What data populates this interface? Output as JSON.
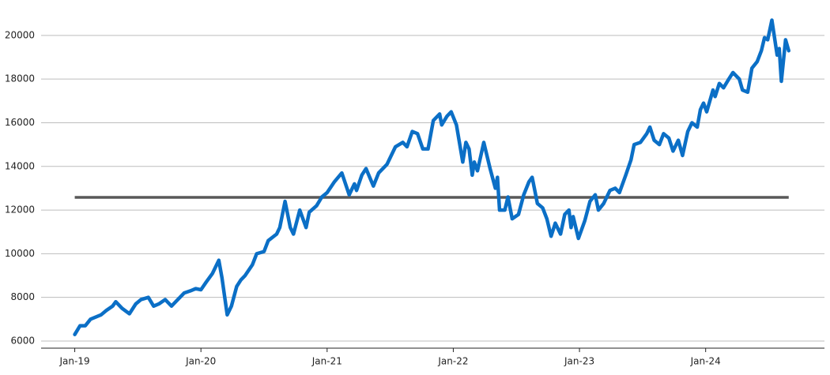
{
  "chart_data": {
    "type": "line",
    "x": [
      0,
      0.5,
      1,
      1.5,
      2,
      2.5,
      3,
      3.3,
      3.6,
      3.9,
      4.5,
      5.2,
      5.8,
      6.3,
      7,
      7.5,
      8,
      8.6,
      9.2,
      9.8,
      10.4,
      11,
      11.5,
      12,
      12.5,
      13.1,
      13.7,
      14,
      14.5,
      14.9,
      15.4,
      15.8,
      16.2,
      16.9,
      17.3,
      18,
      18.4,
      19.2,
      19.5,
      20,
      20.5,
      20.8,
      21.4,
      22,
      22.3,
      23,
      23.5,
      24,
      24.7,
      25.4,
      26.1,
      26.6,
      26.8,
      27.3,
      27.7,
      28.4,
      28.9,
      29.7,
      30.5,
      31.2,
      31.6,
      32.1,
      32.6,
      33.1,
      33.6,
      34.1,
      34.7,
      34.9,
      35.4,
      35.8,
      36.3,
      36.9,
      37.2,
      37.5,
      37.8,
      38,
      38.3,
      38.9,
      39.5,
      40,
      40.2,
      40.4,
      40.9,
      41.2,
      41.6,
      42.2,
      42.7,
      43.2,
      43.5,
      44,
      44.5,
      44.9,
      45.3,
      45.7,
      46.2,
      46.6,
      47,
      47.2,
      47.4,
      47.9,
      48.5,
      49,
      49.5,
      49.8,
      50.3,
      50.9,
      51.4,
      51.8,
      52.4,
      52.9,
      53.2,
      53.8,
      54.4,
      54.7,
      55.1,
      55.6,
      56,
      56.5,
      56.9,
      57.4,
      57.8,
      58.3,
      58.7,
      59.2,
      59.5,
      59.8,
      60.1,
      60.7,
      60.9,
      61.3,
      61.7,
      62.2,
      62.6,
      63.2,
      63.5,
      64,
      64.4,
      64.9,
      65.3,
      65.6,
      65.9,
      66.3,
      66.8,
      67,
      67.2,
      67.6,
      67.9
    ],
    "series": [
      {
        "color": "#0b6fc6",
        "values": [
          6300,
          6700,
          6700,
          7000,
          7100,
          7200,
          7400,
          7500,
          7600,
          7800,
          7500,
          7250,
          7700,
          7900,
          8000,
          7600,
          7700,
          7900,
          7600,
          7900,
          8200,
          8300,
          8400,
          8350,
          8700,
          9100,
          9700,
          8900,
          7200,
          7600,
          8500,
          8800,
          9000,
          9500,
          10000,
          10100,
          10600,
          10900,
          11200,
          12400,
          11200,
          10900,
          12000,
          11200,
          11900,
          12200,
          12600,
          12800,
          13300,
          13700,
          12700,
          13200,
          12900,
          13600,
          13900,
          13100,
          13700,
          14100,
          14900,
          15100,
          14900,
          15600,
          15500,
          14800,
          14800,
          16100,
          16400,
          15900,
          16300,
          16500,
          15900,
          14200,
          15100,
          14800,
          13600,
          14200,
          13800,
          15100,
          13900,
          13000,
          13500,
          12000,
          12000,
          12600,
          11600,
          11800,
          12700,
          13300,
          13500,
          12300,
          12100,
          11600,
          10800,
          11400,
          10900,
          11800,
          12000,
          11200,
          11700,
          10700,
          11500,
          12400,
          12700,
          12000,
          12300,
          12900,
          13000,
          12800,
          13600,
          14300,
          15000,
          15100,
          15500,
          15800,
          15200,
          15000,
          15500,
          15300,
          14700,
          15200,
          14500,
          15600,
          16000,
          15800,
          16600,
          16900,
          16500,
          17500,
          17200,
          17800,
          17600,
          18000,
          18300,
          18000,
          17500,
          17400,
          18500,
          18800,
          19300,
          19900,
          19800,
          20700,
          19100,
          19400,
          17900,
          19800,
          19300
        ]
      }
    ],
    "reference_line": {
      "value": 12580,
      "color": "#595959"
    },
    "xlim": [
      -3.2,
      71.3
    ],
    "xticks": [
      {
        "value": 0,
        "label": "Jan-19"
      },
      {
        "value": 12,
        "label": "Jan-20"
      },
      {
        "value": 24,
        "label": "Jan-21"
      },
      {
        "value": 36,
        "label": "Jan-22"
      },
      {
        "value": 48,
        "label": "Jan-23"
      },
      {
        "value": 60,
        "label": "Jan-24"
      }
    ],
    "ylim": [
      5674,
      20900
    ],
    "yticks": [
      6000,
      8000,
      10000,
      12000,
      14000,
      16000,
      18000,
      20000
    ],
    "grid": true
  }
}
